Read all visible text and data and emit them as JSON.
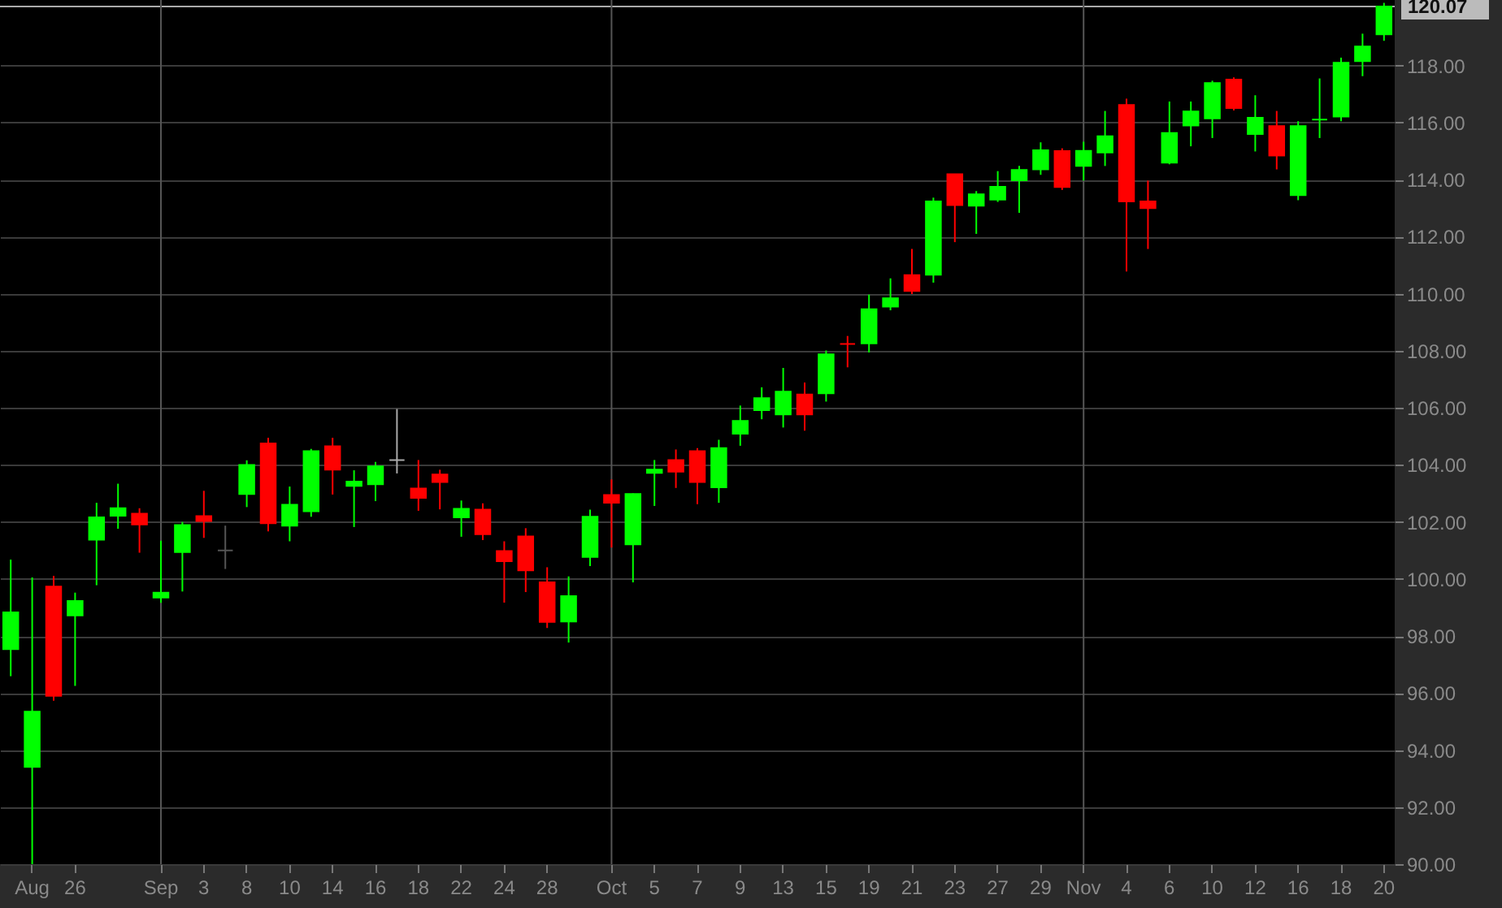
{
  "chart_data": {
    "type": "candlestick",
    "categories": [
      null,
      "Aug",
      null,
      "26",
      null,
      null,
      null,
      "Sep",
      null,
      "3",
      null,
      "8",
      null,
      "10",
      null,
      "14",
      null,
      "16",
      null,
      "18",
      null,
      "22",
      null,
      "24",
      null,
      "28",
      null,
      null,
      "Oct",
      null,
      "5",
      null,
      "7",
      null,
      "9",
      null,
      "13",
      null,
      "15",
      null,
      "19",
      null,
      "21",
      null,
      "23",
      null,
      "27",
      null,
      "29",
      null,
      "Nov",
      null,
      "4",
      null,
      "6",
      null,
      "10",
      null,
      "12",
      null,
      "16",
      null,
      "18",
      null,
      "20"
    ],
    "ohlc": [
      [
        97.54,
        100.68,
        96.59,
        98.83
      ],
      [
        93.41,
        100.05,
        90.0,
        95.35
      ],
      [
        99.73,
        100.11,
        95.73,
        95.9
      ],
      [
        98.72,
        99.52,
        96.25,
        99.23
      ],
      [
        101.38,
        102.67,
        99.78,
        102.16
      ],
      [
        102.22,
        103.34,
        101.76,
        102.48
      ],
      [
        102.29,
        102.48,
        100.92,
        101.91
      ],
      [
        99.35,
        101.34,
        99.16,
        99.52
      ],
      [
        100.94,
        102.0,
        99.56,
        101.89
      ],
      [
        102.2,
        103.09,
        101.44,
        102.03
      ],
      [
        101.0,
        101.87,
        100.35,
        101.0
      ],
      [
        102.98,
        104.16,
        102.52,
        104.0
      ],
      [
        104.75,
        104.95,
        101.67,
        101.95
      ],
      [
        101.87,
        103.24,
        101.32,
        102.6
      ],
      [
        102.37,
        104.56,
        102.18,
        104.48
      ],
      [
        104.65,
        104.95,
        102.96,
        103.83
      ],
      [
        103.26,
        103.81,
        101.82,
        103.41
      ],
      [
        103.32,
        104.1,
        102.73,
        103.95
      ],
      [
        104.17,
        105.96,
        103.7,
        104.17
      ],
      [
        103.17,
        104.17,
        102.39,
        102.84
      ],
      [
        103.66,
        103.83,
        102.44,
        103.4
      ],
      [
        102.16,
        102.75,
        101.48,
        102.46
      ],
      [
        102.43,
        102.65,
        101.36,
        101.57
      ],
      [
        100.98,
        101.32,
        99.17,
        100.62
      ],
      [
        101.49,
        101.78,
        99.54,
        100.3
      ],
      [
        99.88,
        100.41,
        98.28,
        98.49
      ],
      [
        98.51,
        100.09,
        97.77,
        99.4
      ],
      [
        100.77,
        102.43,
        100.45,
        102.18
      ],
      [
        102.94,
        103.49,
        101.1,
        102.67
      ],
      [
        101.21,
        103.0,
        99.88,
        102.98
      ],
      [
        103.72,
        104.17,
        102.56,
        103.83
      ],
      [
        104.17,
        104.54,
        103.19,
        103.76
      ],
      [
        104.48,
        104.59,
        102.62,
        103.4
      ],
      [
        103.21,
        104.88,
        102.67,
        104.59
      ],
      [
        105.09,
        106.08,
        104.67,
        105.54
      ],
      [
        105.92,
        106.72,
        105.6,
        106.34
      ],
      [
        105.77,
        107.4,
        105.31,
        106.57
      ],
      [
        106.47,
        106.89,
        105.2,
        105.77
      ],
      [
        106.51,
        108.01,
        106.22,
        107.88
      ],
      [
        108.24,
        108.52,
        107.42,
        108.24
      ],
      [
        108.26,
        109.97,
        107.94,
        109.46
      ],
      [
        109.55,
        110.54,
        109.42,
        109.84
      ],
      [
        110.65,
        111.57,
        109.99,
        110.1
      ],
      [
        110.67,
        113.37,
        110.39,
        113.24
      ],
      [
        114.19,
        114.2,
        111.81,
        113.11
      ],
      [
        113.09,
        113.6,
        112.1,
        113.49
      ],
      [
        113.3,
        114.3,
        113.22,
        113.75
      ],
      [
        113.98,
        114.48,
        112.84,
        114.34
      ],
      [
        114.36,
        115.31,
        114.17,
        115.03
      ],
      [
        115.0,
        115.1,
        113.64,
        113.74
      ],
      [
        114.48,
        115.33,
        113.97,
        115.01
      ],
      [
        114.95,
        116.41,
        114.48,
        115.52
      ],
      [
        116.62,
        116.84,
        110.78,
        113.24
      ],
      [
        113.24,
        113.97,
        111.57,
        113.0
      ],
      [
        114.6,
        116.74,
        114.54,
        115.64
      ],
      [
        115.9,
        116.74,
        115.17,
        116.39
      ],
      [
        116.15,
        117.47,
        115.46,
        117.39
      ],
      [
        117.51,
        117.59,
        116.43,
        116.51
      ],
      [
        115.6,
        116.96,
        114.99,
        116.17
      ],
      [
        115.88,
        116.41,
        114.36,
        114.85
      ],
      [
        113.46,
        116.05,
        113.28,
        115.88
      ],
      [
        116.11,
        117.55,
        115.46,
        116.11
      ],
      [
        116.21,
        118.28,
        116.05,
        118.1
      ],
      [
        118.16,
        119.12,
        117.63,
        118.67
      ],
      [
        119.1,
        120.2,
        118.87,
        120.07
      ]
    ],
    "colors": [
      "#00ff00",
      "#00ff00",
      "#ff0000",
      "#00ff00",
      "#00ff00",
      "#00ff00",
      "#ff0000",
      "#00ff00",
      "#00ff00",
      "#ff0000",
      "#555555",
      "#00ff00",
      "#ff0000",
      "#00ff00",
      "#00ff00",
      "#ff0000",
      "#00ff00",
      "#00ff00",
      "#aaaaaa",
      "#ff0000",
      "#ff0000",
      "#00ff00",
      "#ff0000",
      "#ff0000",
      "#ff0000",
      "#ff0000",
      "#00ff00",
      "#00ff00",
      "#ff0000",
      "#00ff00",
      "#00ff00",
      "#ff0000",
      "#ff0000",
      "#00ff00",
      "#00ff00",
      "#00ff00",
      "#00ff00",
      "#ff0000",
      "#00ff00",
      "#ff0000",
      "#00ff00",
      "#00ff00",
      "#ff0000",
      "#00ff00",
      "#ff0000",
      "#00ff00",
      "#00ff00",
      "#00ff00",
      "#00ff00",
      "#ff0000",
      "#00ff00",
      "#00ff00",
      "#ff0000",
      "#ff0000",
      "#00ff00",
      "#00ff00",
      "#00ff00",
      "#ff0000",
      "#00ff00",
      "#ff0000",
      "#00ff00",
      "#00ff00",
      "#00ff00",
      "#00ff00",
      "#00ff00"
    ],
    "ylim": [
      90,
      120.3
    ],
    "yticks": [
      {
        "value": 90,
        "label": "90.00"
      },
      {
        "value": 92,
        "label": "92.00"
      },
      {
        "value": 94,
        "label": "94.00"
      },
      {
        "value": 96,
        "label": "96.00"
      },
      {
        "value": 98,
        "label": "98.00"
      },
      {
        "value": 100,
        "label": "100.00"
      },
      {
        "value": 102,
        "label": "102.00"
      },
      {
        "value": 104,
        "label": "104.00"
      },
      {
        "value": 106,
        "label": "106.00"
      },
      {
        "value": 108,
        "label": "108.00"
      },
      {
        "value": 110,
        "label": "110.00"
      },
      {
        "value": 112,
        "label": "112.00"
      },
      {
        "value": 114,
        "label": "114.00"
      },
      {
        "value": 116,
        "label": "116.00"
      },
      {
        "value": 118,
        "label": "118.00"
      }
    ],
    "grid": "y",
    "ref_lines": [
      {
        "axis": "y",
        "value": 120.07,
        "label": "120.07",
        "color": "#aaaaaa"
      },
      {
        "axis": "x",
        "value": "Sep",
        "color": "#555555"
      },
      {
        "axis": "x",
        "value": "Oct",
        "color": "#555555"
      },
      {
        "axis": "x",
        "value": "Nov",
        "color": "#555555"
      }
    ]
  }
}
